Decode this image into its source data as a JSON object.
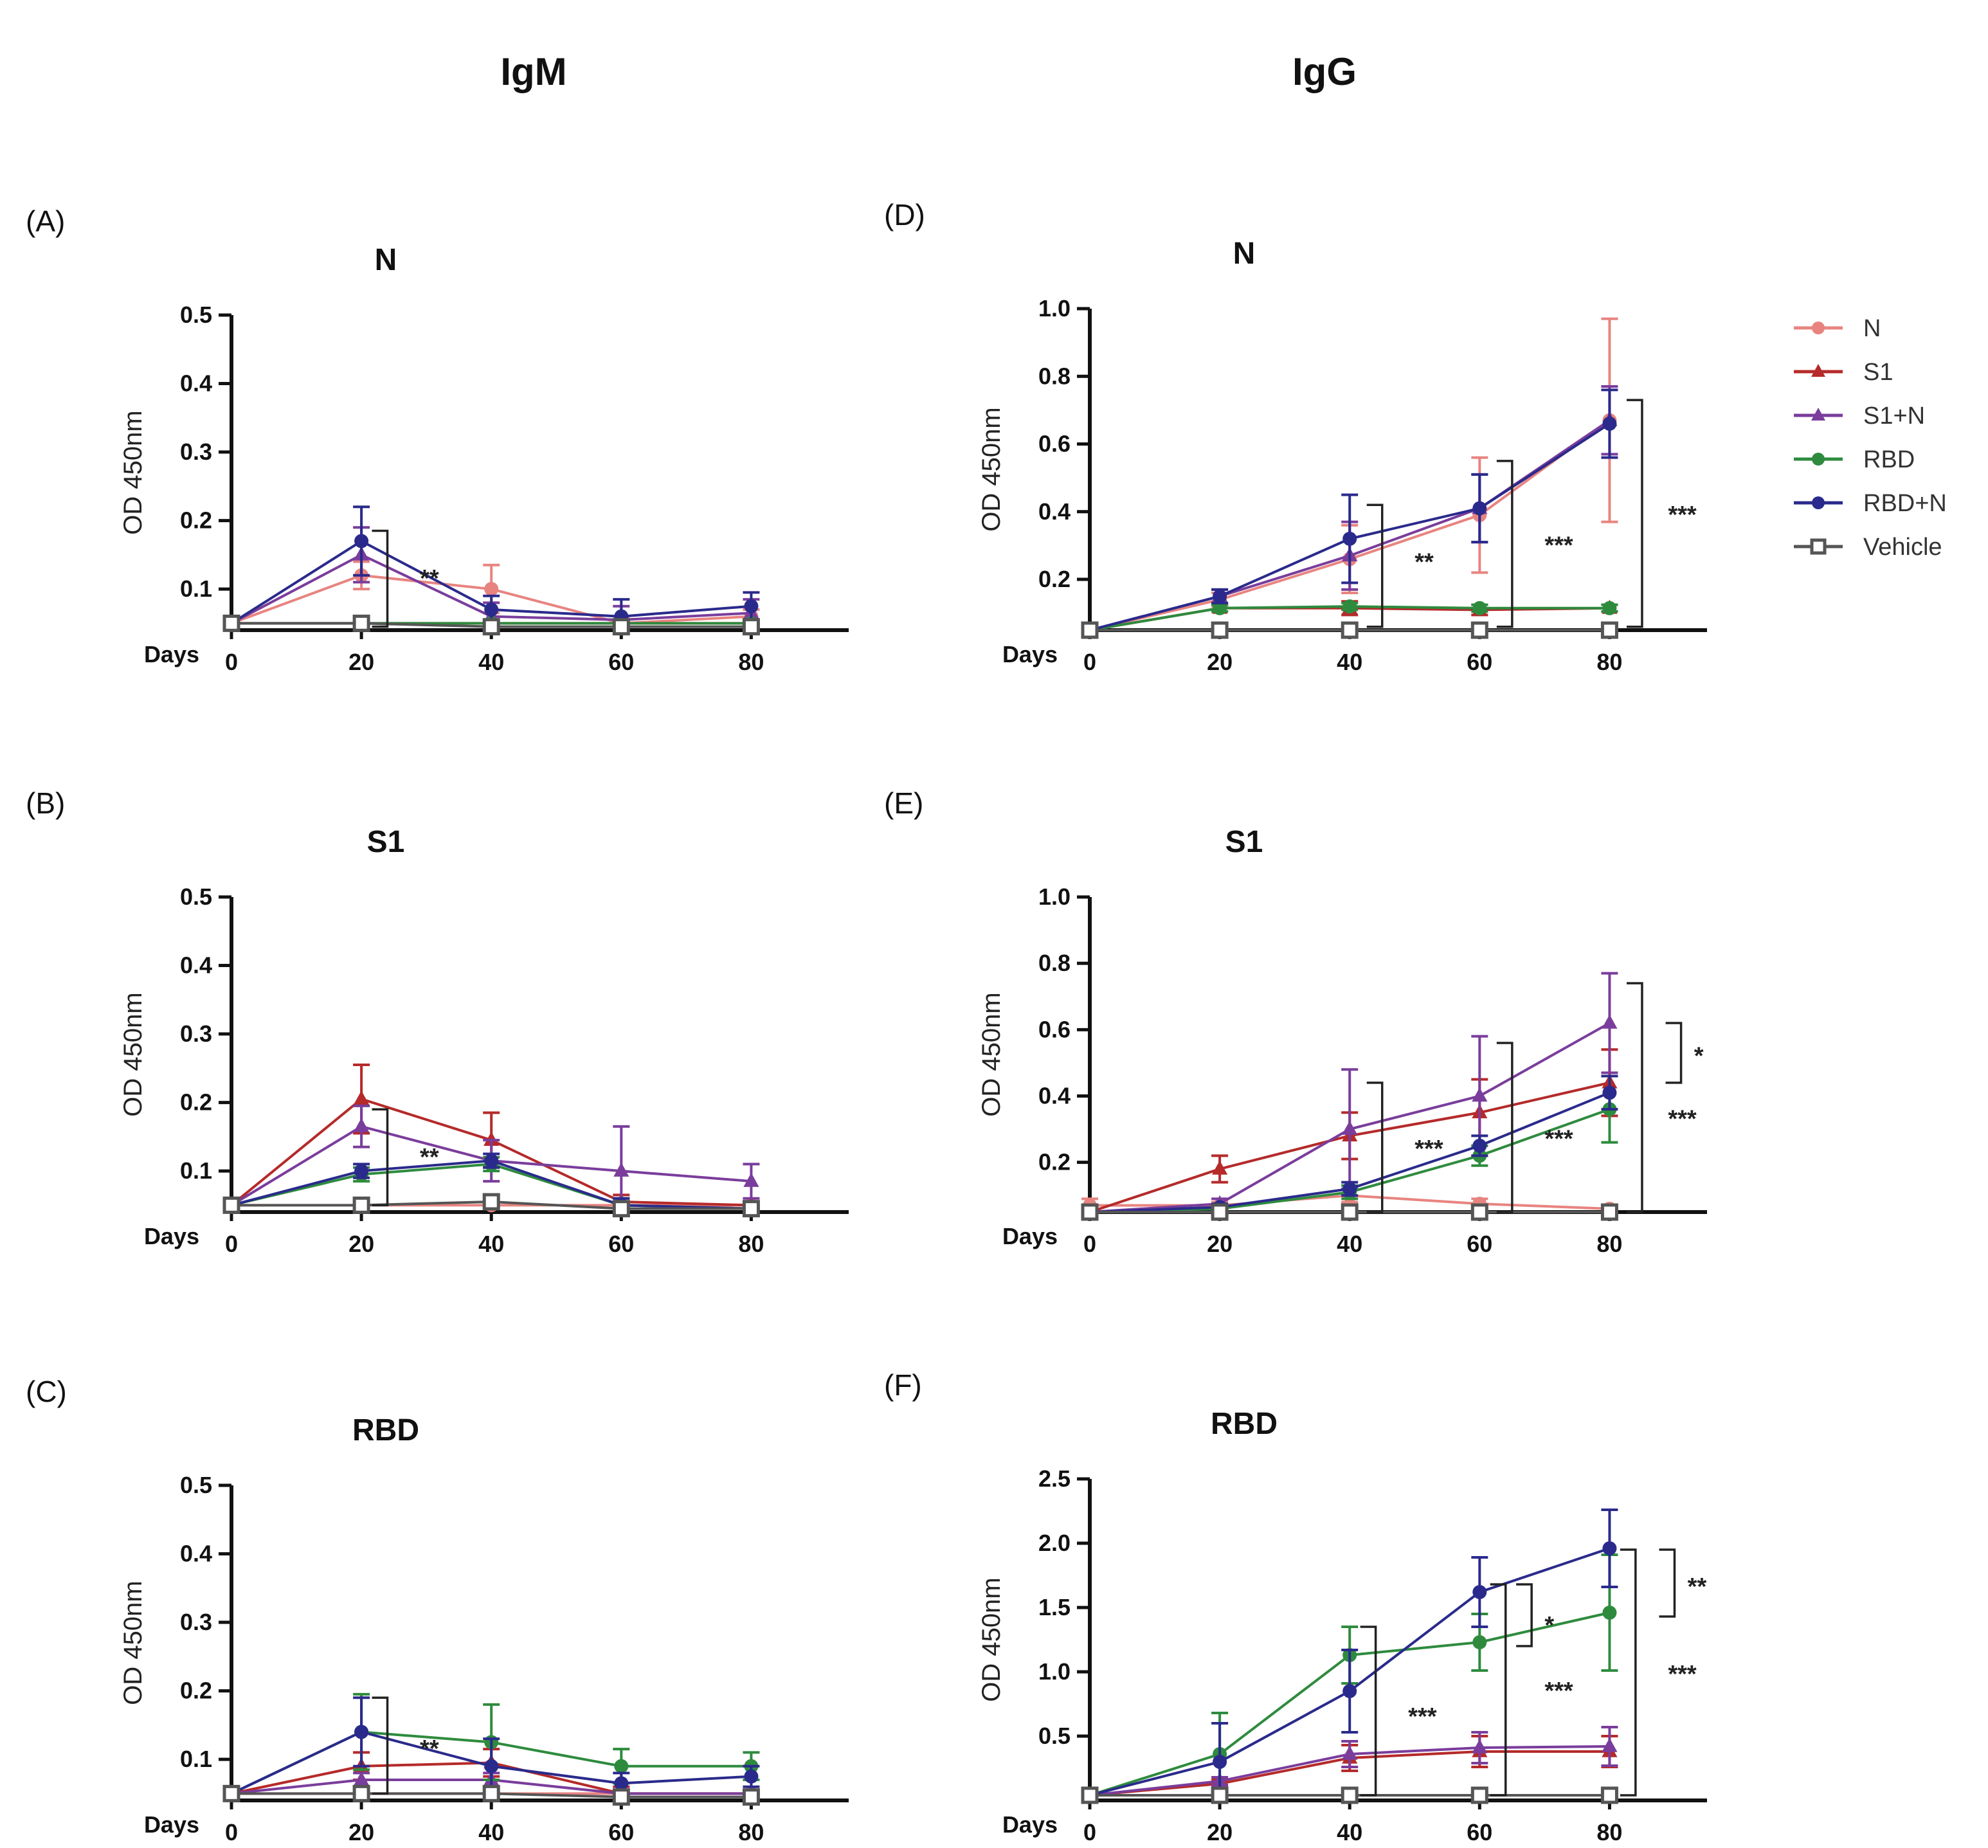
{
  "figure": {
    "column_titles": [
      "IgM",
      "IgG"
    ]
  },
  "legend": [
    {
      "name": "N",
      "color": "#e88480",
      "marker": "circle"
    },
    {
      "name": "S1",
      "color": "#b52a2a",
      "marker": "triangle"
    },
    {
      "name": "S1+N",
      "color": "#7a3d9c",
      "marker": "triangle"
    },
    {
      "name": "RBD",
      "color": "#2e8b3e",
      "marker": "circle"
    },
    {
      "name": "RBD+N",
      "color": "#2a2a8c",
      "marker": "circle"
    },
    {
      "name": "Vehicle",
      "color": "#555555",
      "marker": "square"
    }
  ],
  "chart_data": [
    {
      "panel": "(A)",
      "type": "line",
      "title": "N",
      "xlabel": "Days",
      "ylabel": "OD 450nm",
      "x": [
        0,
        20,
        40,
        60,
        80
      ],
      "xlim": [
        0,
        95
      ],
      "ylim": [
        0.04,
        0.5
      ],
      "yticks": [
        0.1,
        0.2,
        0.3,
        0.4,
        0.5
      ],
      "ytick_labels": [
        "0.1",
        "0.2",
        "0.3",
        "0.4",
        "0.5"
      ],
      "series": [
        {
          "name": "N",
          "values": [
            0.05,
            0.12,
            0.1,
            0.05,
            0.06
          ],
          "err": [
            0.01,
            0.02,
            0.035,
            0.01,
            0.01
          ]
        },
        {
          "name": "S1",
          "values": [
            0.05,
            0.05,
            0.05,
            0.05,
            0.05
          ],
          "err": [
            0,
            0,
            0,
            0,
            0
          ]
        },
        {
          "name": "S1+N",
          "values": [
            0.05,
            0.15,
            0.06,
            0.055,
            0.065
          ],
          "err": [
            0.01,
            0.04,
            0.02,
            0.02,
            0.02
          ]
        },
        {
          "name": "RBD",
          "values": [
            0.05,
            0.05,
            0.05,
            0.05,
            0.05
          ],
          "err": [
            0,
            0,
            0,
            0,
            0
          ]
        },
        {
          "name": "RBD+N",
          "values": [
            0.05,
            0.17,
            0.07,
            0.06,
            0.075
          ],
          "err": [
            0.01,
            0.05,
            0.02,
            0.025,
            0.02
          ]
        },
        {
          "name": "Vehicle",
          "values": [
            0.05,
            0.05,
            0.045,
            0.045,
            0.045
          ],
          "err": [
            0,
            0,
            0,
            0,
            0
          ]
        }
      ],
      "brackets": [
        {
          "x": 24,
          "y1": 0.045,
          "y2": 0.185
        }
      ],
      "annotations": [
        {
          "text": "**",
          "x": 29,
          "y": 0.115
        }
      ]
    },
    {
      "panel": "(B)",
      "type": "line",
      "title": "S1",
      "xlabel": "Days",
      "ylabel": "OD 450nm",
      "x": [
        0,
        20,
        40,
        60,
        80
      ],
      "xlim": [
        0,
        95
      ],
      "ylim": [
        0.04,
        0.5
      ],
      "yticks": [
        0.1,
        0.2,
        0.3,
        0.4,
        0.5
      ],
      "ytick_labels": [
        "0.1",
        "0.2",
        "0.3",
        "0.4",
        "0.5"
      ],
      "series": [
        {
          "name": "N",
          "values": [
            0.05,
            0.05,
            0.05,
            0.05,
            0.05
          ],
          "err": [
            0,
            0,
            0,
            0,
            0
          ]
        },
        {
          "name": "S1",
          "values": [
            0.05,
            0.205,
            0.145,
            0.055,
            0.05
          ],
          "err": [
            0.005,
            0.05,
            0.04,
            0.01,
            0.005
          ]
        },
        {
          "name": "S1+N",
          "values": [
            0.05,
            0.165,
            0.115,
            0.1,
            0.085
          ],
          "err": [
            0.005,
            0.03,
            0.03,
            0.065,
            0.025
          ]
        },
        {
          "name": "RBD",
          "values": [
            0.05,
            0.095,
            0.11,
            0.05,
            0.045
          ],
          "err": [
            0.005,
            0.01,
            0.01,
            0.01,
            0.005
          ]
        },
        {
          "name": "RBD+N",
          "values": [
            0.05,
            0.1,
            0.115,
            0.05,
            0.045
          ],
          "err": [
            0.005,
            0.01,
            0.01,
            0.01,
            0.005
          ]
        },
        {
          "name": "Vehicle",
          "values": [
            0.05,
            0.05,
            0.055,
            0.045,
            0.045
          ],
          "err": [
            0,
            0,
            0,
            0,
            0
          ]
        }
      ],
      "brackets": [
        {
          "x": 24,
          "y1": 0.05,
          "y2": 0.19
        }
      ],
      "annotations": [
        {
          "text": "**",
          "x": 29,
          "y": 0.12
        }
      ]
    },
    {
      "panel": "(C)",
      "type": "line",
      "title": "RBD",
      "xlabel": "Days",
      "ylabel": "OD 450nm",
      "x": [
        0,
        20,
        40,
        60,
        80
      ],
      "xlim": [
        0,
        95
      ],
      "ylim": [
        0.04,
        0.5
      ],
      "yticks": [
        0.1,
        0.2,
        0.3,
        0.4,
        0.5
      ],
      "ytick_labels": [
        "0.1",
        "0.2",
        "0.3",
        "0.4",
        "0.5"
      ],
      "series": [
        {
          "name": "N",
          "values": [
            0.05,
            0.05,
            0.05,
            0.05,
            0.05
          ],
          "err": [
            0,
            0,
            0,
            0,
            0
          ]
        },
        {
          "name": "S1",
          "values": [
            0.05,
            0.09,
            0.095,
            0.05,
            0.05
          ],
          "err": [
            0.005,
            0.02,
            0.02,
            0.01,
            0.005
          ]
        },
        {
          "name": "S1+N",
          "values": [
            0.05,
            0.07,
            0.07,
            0.05,
            0.05
          ],
          "err": [
            0.005,
            0.01,
            0.01,
            0.005,
            0.005
          ]
        },
        {
          "name": "RBD",
          "values": [
            0.05,
            0.14,
            0.125,
            0.09,
            0.09
          ],
          "err": [
            0.005,
            0.055,
            0.055,
            0.025,
            0.02
          ]
        },
        {
          "name": "RBD+N",
          "values": [
            0.05,
            0.14,
            0.09,
            0.065,
            0.075
          ],
          "err": [
            0.005,
            0.05,
            0.04,
            0.015,
            0.015
          ]
        },
        {
          "name": "Vehicle",
          "values": [
            0.05,
            0.05,
            0.05,
            0.045,
            0.045
          ],
          "err": [
            0,
            0,
            0,
            0,
            0
          ]
        }
      ],
      "brackets": [
        {
          "x": 24,
          "y1": 0.05,
          "y2": 0.19
        }
      ],
      "annotations": [
        {
          "text": "**",
          "x": 29,
          "y": 0.115
        }
      ]
    },
    {
      "panel": "(D)",
      "type": "line",
      "title": "N",
      "xlabel": "Days",
      "ylabel": "OD 450nm",
      "x": [
        0,
        20,
        40,
        60,
        80
      ],
      "xlim": [
        0,
        95
      ],
      "ylim": [
        0.05,
        1.0
      ],
      "yticks": [
        0.2,
        0.4,
        0.6,
        0.8,
        1.0
      ],
      "ytick_labels": [
        "0.2",
        "0.4",
        "0.6",
        "0.8",
        "1.0"
      ],
      "series": [
        {
          "name": "N",
          "values": [
            0.05,
            0.14,
            0.26,
            0.39,
            0.67
          ],
          "err": [
            0.01,
            0.02,
            0.1,
            0.17,
            0.3
          ]
        },
        {
          "name": "S1",
          "values": [
            0.05,
            0.115,
            0.115,
            0.11,
            0.115
          ],
          "err": [
            0.005,
            0.01,
            0.02,
            0.015,
            0.01
          ]
        },
        {
          "name": "S1+N",
          "values": [
            0.05,
            0.15,
            0.27,
            0.41,
            0.67
          ],
          "err": [
            0.01,
            0.02,
            0.1,
            0.1,
            0.1
          ]
        },
        {
          "name": "RBD",
          "values": [
            0.05,
            0.115,
            0.12,
            0.115,
            0.115
          ],
          "err": [
            0.005,
            0.01,
            0.01,
            0.01,
            0.01
          ]
        },
        {
          "name": "RBD+N",
          "values": [
            0.05,
            0.15,
            0.32,
            0.41,
            0.66
          ],
          "err": [
            0.01,
            0.02,
            0.13,
            0.1,
            0.1
          ]
        },
        {
          "name": "Vehicle",
          "values": [
            0.05,
            0.05,
            0.05,
            0.05,
            0.05
          ],
          "err": [
            0,
            0,
            0,
            0,
            0
          ]
        }
      ],
      "brackets": [
        {
          "x": 45,
          "y1": 0.06,
          "y2": 0.42
        },
        {
          "x": 65,
          "y1": 0.06,
          "y2": 0.55
        },
        {
          "x": 85,
          "y1": 0.06,
          "y2": 0.73
        }
      ],
      "annotations": [
        {
          "text": "**",
          "x": 50,
          "y": 0.25
        },
        {
          "text": "***",
          "x": 70,
          "y": 0.3
        },
        {
          "text": "***",
          "x": 89,
          "y": 0.39
        }
      ]
    },
    {
      "panel": "(E)",
      "type": "line",
      "title": "S1",
      "xlabel": "Days",
      "ylabel": "OD 450nm",
      "x": [
        0,
        20,
        40,
        60,
        80
      ],
      "xlim": [
        0,
        95
      ],
      "ylim": [
        0.05,
        1.0
      ],
      "yticks": [
        0.2,
        0.4,
        0.6,
        0.8,
        1.0
      ],
      "ytick_labels": [
        "0.2",
        "0.4",
        "0.6",
        "0.8",
        "1.0"
      ],
      "series": [
        {
          "name": "N",
          "values": [
            0.07,
            0.07,
            0.1,
            0.075,
            0.06
          ],
          "err": [
            0.02,
            0.01,
            0.02,
            0.015,
            0.01
          ]
        },
        {
          "name": "S1",
          "values": [
            0.05,
            0.18,
            0.28,
            0.35,
            0.44
          ],
          "err": [
            0.01,
            0.04,
            0.07,
            0.1,
            0.1
          ]
        },
        {
          "name": "S1+N",
          "values": [
            0.05,
            0.075,
            0.3,
            0.4,
            0.62
          ],
          "err": [
            0.01,
            0.015,
            0.18,
            0.18,
            0.15
          ]
        },
        {
          "name": "RBD",
          "values": [
            0.05,
            0.06,
            0.11,
            0.22,
            0.36
          ],
          "err": [
            0.01,
            0.01,
            0.02,
            0.03,
            0.1
          ]
        },
        {
          "name": "RBD+N",
          "values": [
            0.05,
            0.065,
            0.12,
            0.25,
            0.41
          ],
          "err": [
            0.01,
            0.01,
            0.02,
            0.03,
            0.05
          ]
        },
        {
          "name": "Vehicle",
          "values": [
            0.05,
            0.05,
            0.05,
            0.05,
            0.05
          ],
          "err": [
            0,
            0,
            0,
            0,
            0
          ]
        }
      ],
      "brackets": [
        {
          "x": 45,
          "y1": 0.05,
          "y2": 0.44
        },
        {
          "x": 65,
          "y1": 0.05,
          "y2": 0.56
        },
        {
          "x": 85,
          "y1": 0.05,
          "y2": 0.74
        },
        {
          "x": 91,
          "y1": 0.44,
          "y2": 0.62
        }
      ],
      "annotations": [
        {
          "text": "***",
          "x": 50,
          "y": 0.24
        },
        {
          "text": "***",
          "x": 70,
          "y": 0.27
        },
        {
          "text": "*",
          "x": 93,
          "y": 0.52
        },
        {
          "text": "***",
          "x": 89,
          "y": 0.33
        }
      ]
    },
    {
      "panel": "(F)",
      "type": "line",
      "title": "RBD",
      "xlabel": "Days",
      "ylabel": "OD 450nm",
      "x": [
        0,
        20,
        40,
        60,
        80
      ],
      "xlim": [
        0,
        95
      ],
      "ylim": [
        0.0,
        2.5
      ],
      "yticks": [
        0.5,
        1.0,
        1.5,
        2.0,
        2.5
      ],
      "ytick_labels": [
        "0.5",
        "1.0",
        "1.5",
        "2.0",
        "2.5"
      ],
      "series": [
        {
          "name": "N",
          "values": [
            0.04,
            0.04,
            0.04,
            0.04,
            0.04
          ],
          "err": [
            0,
            0,
            0,
            0,
            0
          ]
        },
        {
          "name": "S1",
          "values": [
            0.04,
            0.13,
            0.33,
            0.38,
            0.38
          ],
          "err": [
            0.01,
            0.03,
            0.1,
            0.12,
            0.12
          ]
        },
        {
          "name": "S1+N",
          "values": [
            0.04,
            0.15,
            0.36,
            0.41,
            0.42
          ],
          "err": [
            0.01,
            0.03,
            0.1,
            0.12,
            0.15
          ]
        },
        {
          "name": "RBD",
          "values": [
            0.04,
            0.36,
            1.13,
            1.23,
            1.46
          ],
          "err": [
            0.02,
            0.32,
            0.22,
            0.22,
            0.45
          ]
        },
        {
          "name": "RBD+N",
          "values": [
            0.04,
            0.3,
            0.85,
            1.62,
            1.96
          ],
          "err": [
            0.02,
            0.3,
            0.32,
            0.27,
            0.3
          ]
        },
        {
          "name": "Vehicle",
          "values": [
            0.04,
            0.04,
            0.04,
            0.04,
            0.04
          ],
          "err": [
            0,
            0,
            0,
            0,
            0
          ]
        }
      ],
      "brackets": [
        {
          "x": 44,
          "y1": 0.04,
          "y2": 1.35
        },
        {
          "x": 64,
          "y1": 0.04,
          "y2": 1.68
        },
        {
          "x": 68,
          "y1": 1.2,
          "y2": 1.68
        },
        {
          "x": 84,
          "y1": 0.04,
          "y2": 1.95
        },
        {
          "x": 90,
          "y1": 1.43,
          "y2": 1.95
        }
      ],
      "annotations": [
        {
          "text": "***",
          "x": 49,
          "y": 0.65
        },
        {
          "text": "***",
          "x": 70,
          "y": 0.85
        },
        {
          "text": "*",
          "x": 70,
          "y": 1.36
        },
        {
          "text": "**",
          "x": 92,
          "y": 1.66
        },
        {
          "text": "***",
          "x": 89,
          "y": 0.98
        }
      ]
    }
  ]
}
